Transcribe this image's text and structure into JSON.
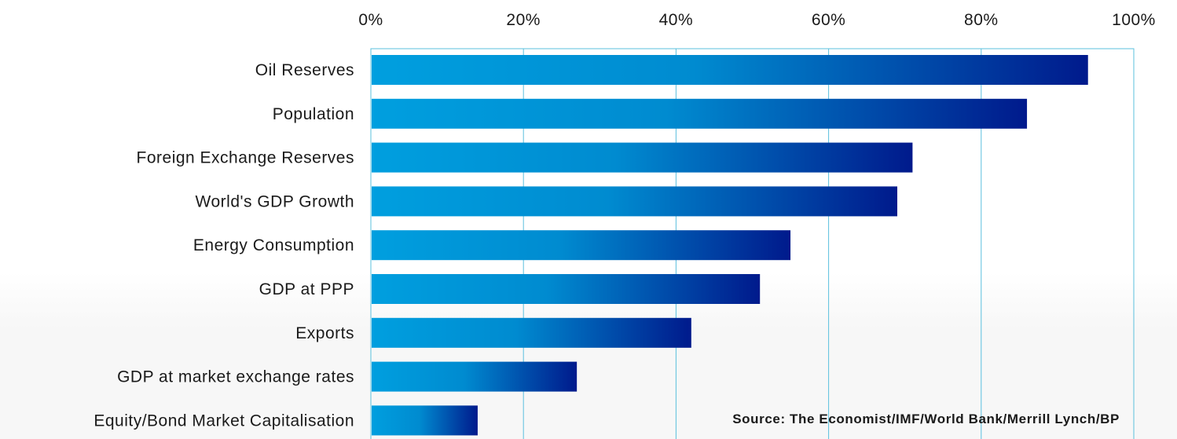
{
  "chart_data": {
    "type": "bar",
    "orientation": "horizontal",
    "categories": [
      "Oil Reserves",
      "Population",
      "Foreign Exchange Reserves",
      "World's GDP Growth",
      "Energy Consumption",
      "GDP at PPP",
      "Exports",
      "GDP at market exchange rates",
      "Equity/Bond Market Capitalisation"
    ],
    "values": [
      94,
      86,
      71,
      69,
      55,
      51,
      42,
      27,
      14
    ],
    "xlim": [
      0,
      100
    ],
    "x_ticks": [
      "0%",
      "20%",
      "40%",
      "60%",
      "80%",
      "100%"
    ],
    "x_axis_position": "top",
    "grid": true,
    "legend": "none",
    "annotation": "Source: The Economist/IMF/World Bank/Merrill Lynch/BP",
    "colors": {
      "bar_start": "#009fdf",
      "bar_end": "#001a8c",
      "grid": "#5bc0de",
      "text": "#1a1a1a"
    }
  }
}
